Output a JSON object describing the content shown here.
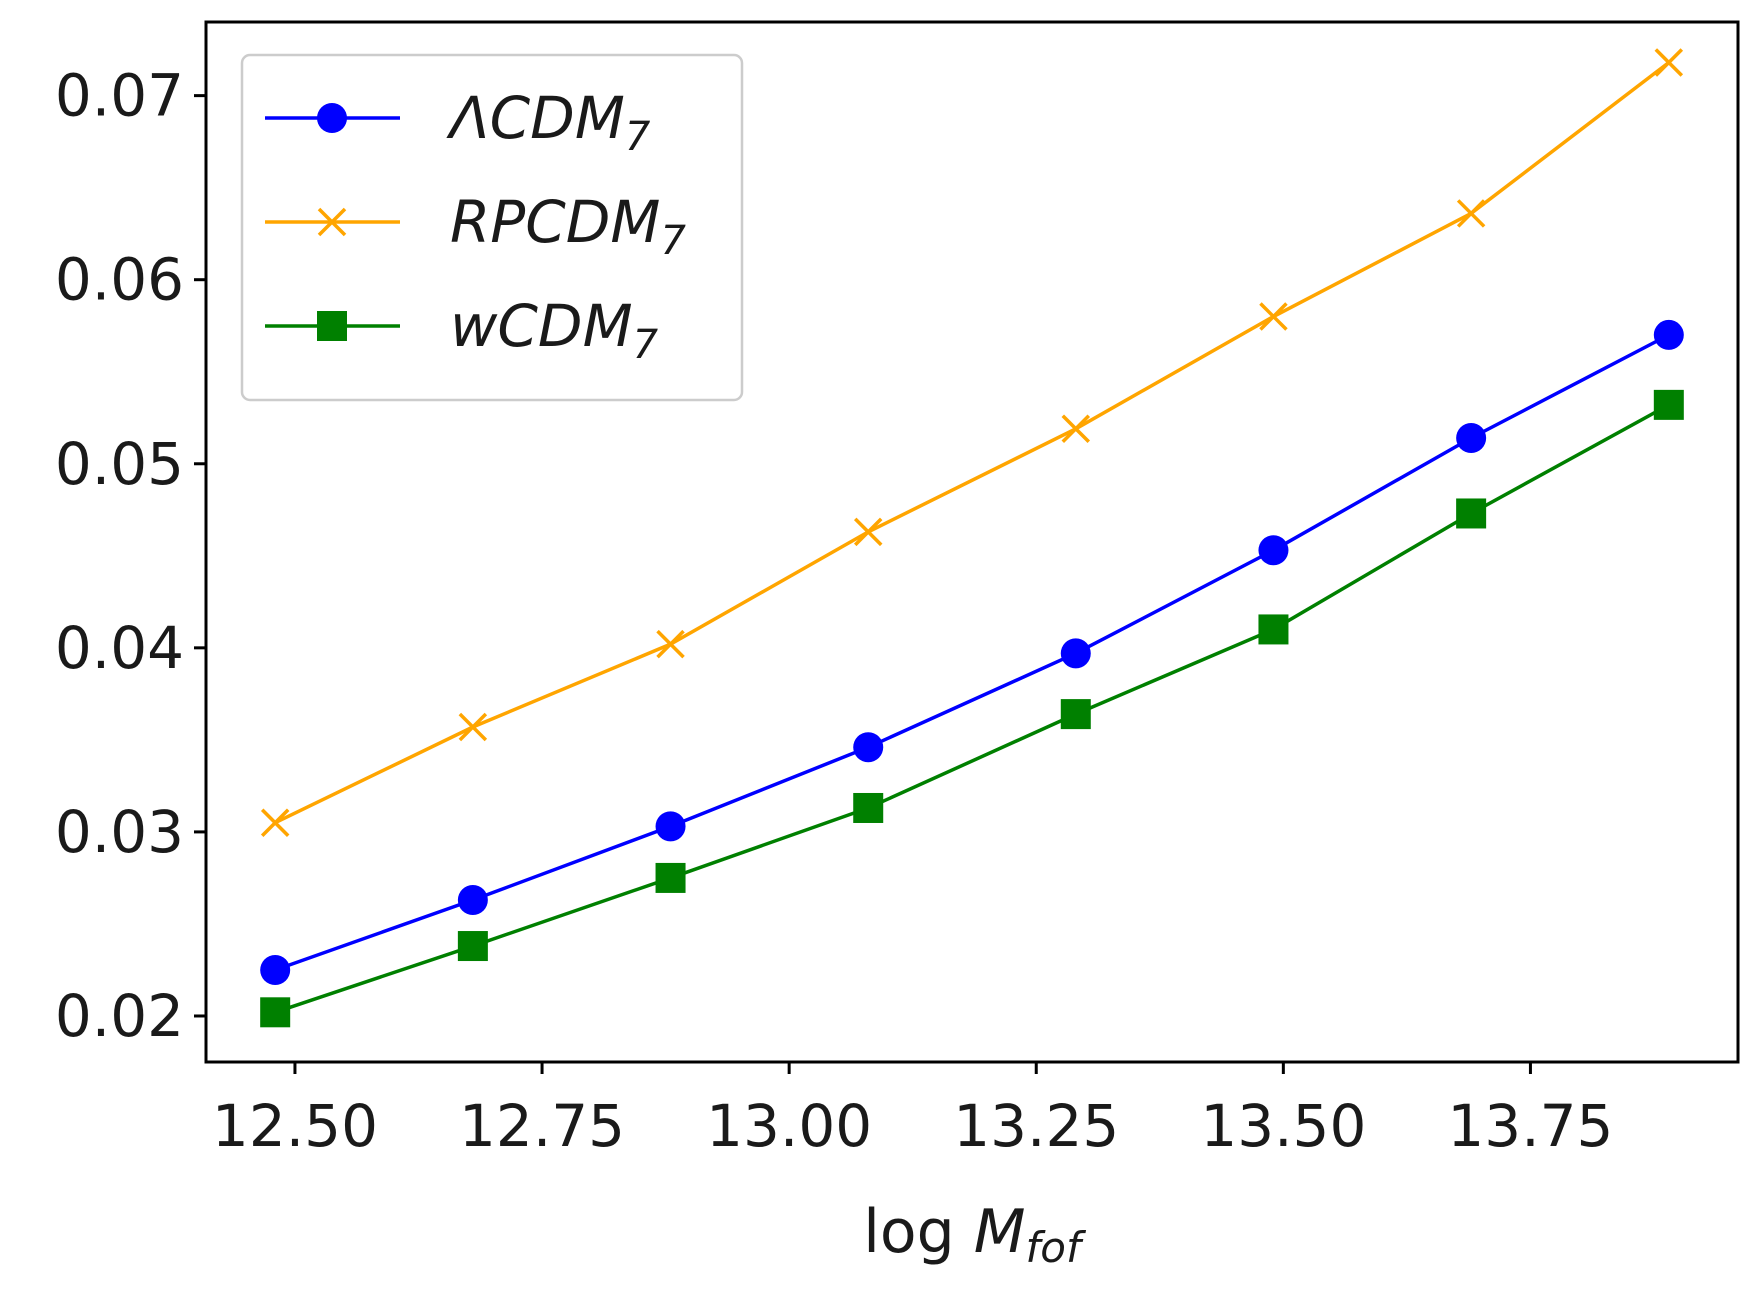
{
  "chart_data": {
    "type": "line",
    "title": "",
    "xlabel_main": "log ",
    "xlabel_var": "M",
    "xlabel_sub": "fof",
    "ylabel": "",
    "x": [
      12.48,
      12.68,
      12.88,
      13.08,
      13.29,
      13.49,
      13.69,
      13.89
    ],
    "xlim": [
      12.41,
      13.96
    ],
    "ylim": [
      0.0175,
      0.074
    ],
    "x_ticks": [
      12.5,
      12.75,
      13.0,
      13.25,
      13.5,
      13.75
    ],
    "x_tick_labels": [
      "12.50",
      "12.75",
      "13.00",
      "13.25",
      "13.50",
      "13.75"
    ],
    "y_ticks": [
      0.02,
      0.03,
      0.04,
      0.05,
      0.06,
      0.07
    ],
    "y_tick_labels": [
      "0.02",
      "0.03",
      "0.04",
      "0.05",
      "0.06",
      "0.07"
    ],
    "grid": false,
    "legend_position": "top-left",
    "series": [
      {
        "name": "ΛCDM",
        "subscript": "7",
        "color": "#0000ff",
        "marker": "circle",
        "values": [
          0.0225,
          0.0263,
          0.0303,
          0.0346,
          0.0397,
          0.0453,
          0.0514,
          0.057
        ]
      },
      {
        "name": "RPCDM",
        "subscript": "7",
        "color": "#ffa500",
        "marker": "x",
        "values": [
          0.0305,
          0.0357,
          0.0402,
          0.0463,
          0.0519,
          0.058,
          0.0636,
          0.0718
        ]
      },
      {
        "name": "wCDM",
        "subscript": "7",
        "color": "#008000",
        "marker": "square",
        "values": [
          0.0202,
          0.0238,
          0.0275,
          0.0313,
          0.0364,
          0.041,
          0.0473,
          0.0532
        ]
      }
    ]
  }
}
